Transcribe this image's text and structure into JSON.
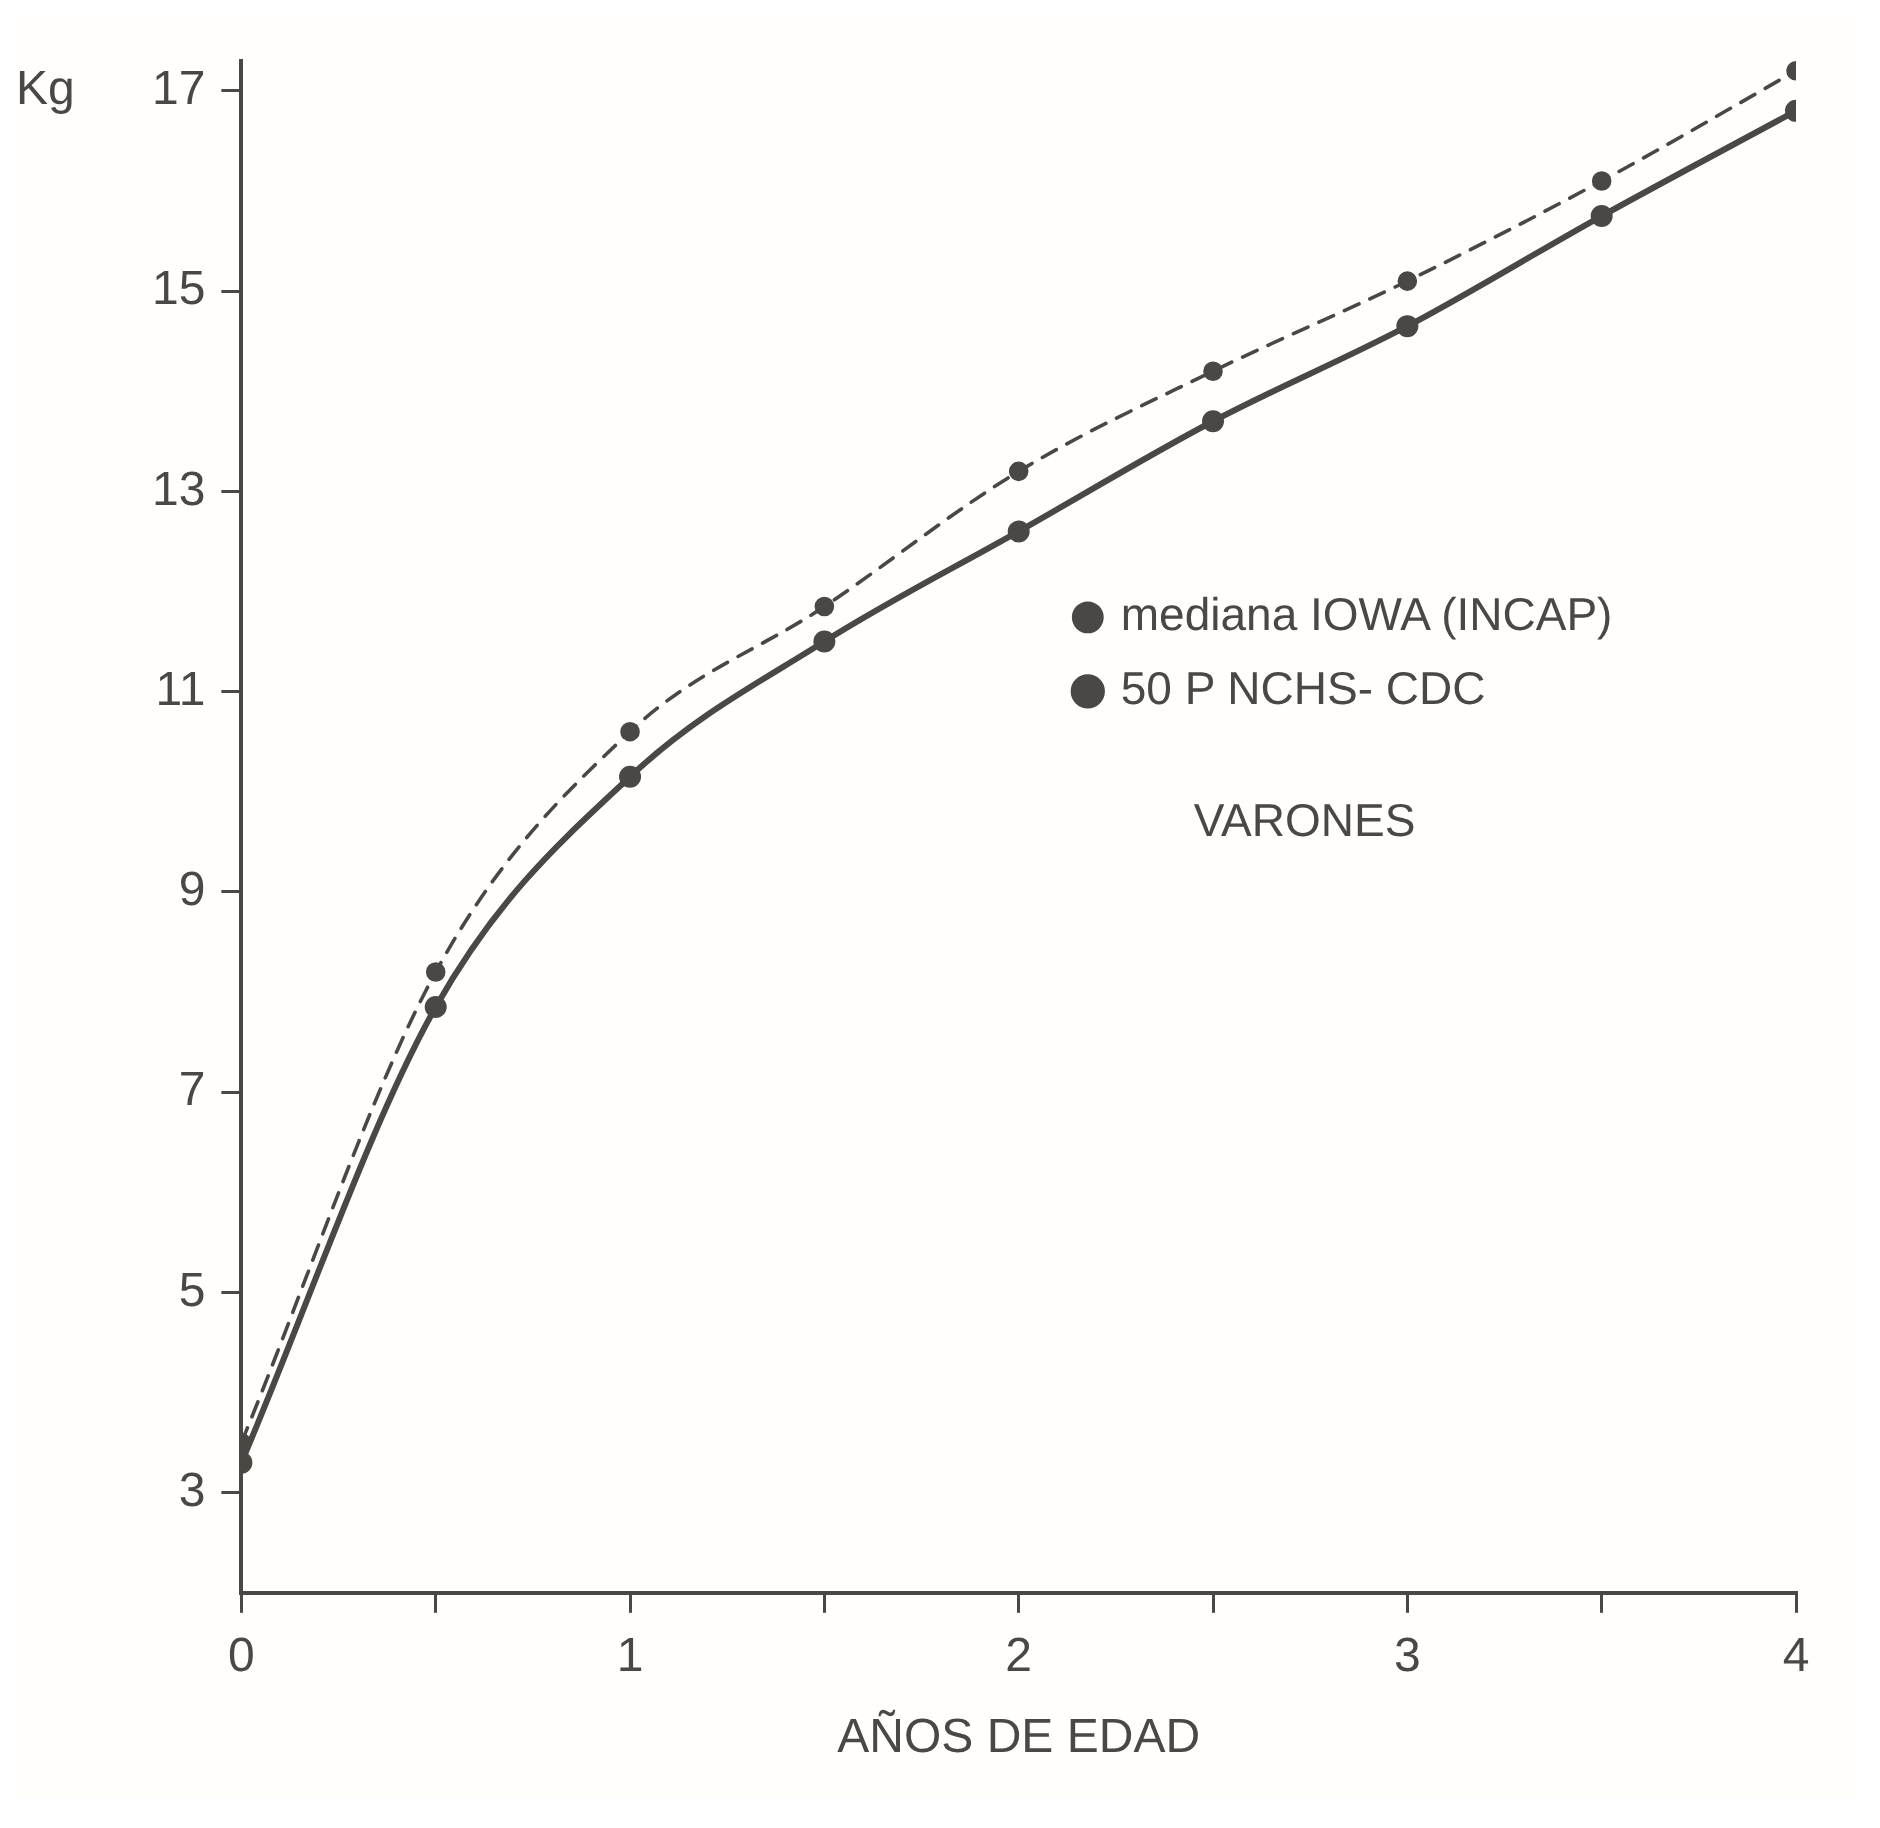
{
  "chart_data": {
    "type": "line",
    "xlabel": "AÑOS DE EDAD",
    "ylabel": "Kg",
    "x": [
      0,
      0.5,
      1,
      1.5,
      2,
      2.5,
      3,
      3.5,
      4
    ],
    "series": [
      {
        "name": "mediana IOWA (INCAP)",
        "color": "#4a4744",
        "line_style": "dashed",
        "values": [
          3.5,
          8.2,
          10.6,
          11.85,
          13.2,
          14.2,
          15.1,
          16.1,
          17.2
        ]
      },
      {
        "name": "50 P NCHS- CDC",
        "color": "#4a4744",
        "line_style": "solid",
        "values": [
          3.3,
          7.85,
          10.15,
          11.5,
          12.6,
          13.7,
          14.65,
          15.75,
          16.8
        ]
      }
    ],
    "xlim": [
      0,
      4
    ],
    "xticks": [
      0,
      {
        "value": 0.5,
        "label": null
      },
      1,
      {
        "value": 1.5,
        "label": null
      },
      2,
      {
        "value": 2.5,
        "label": null
      },
      3,
      {
        "value": 3.5,
        "label": null
      },
      4
    ],
    "ylim": [
      2,
      17.3
    ],
    "yticks": [
      3,
      5,
      7,
      9,
      11,
      13,
      15,
      17
    ],
    "marker": "circle",
    "grid": false,
    "legend": "right",
    "annotations": [
      "VARONES"
    ]
  }
}
